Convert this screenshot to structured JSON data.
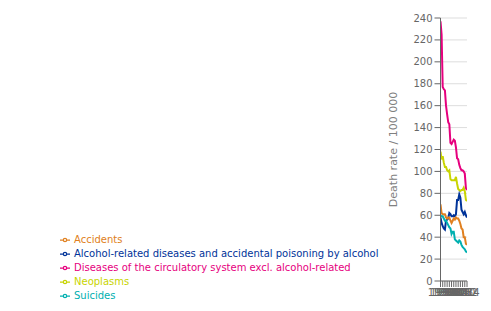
{
  "chart_data": {
    "type": "line",
    "x": [
      1990,
      1991,
      1992,
      1993,
      1994,
      1995,
      1996,
      1997,
      1998,
      1999,
      2000,
      2001,
      2002,
      2003,
      2004,
      2005,
      2006,
      2007,
      2008,
      2009,
      2010,
      2011,
      2012,
      2013,
      2014
    ],
    "series": [
      {
        "name": "Neoplasms",
        "color": "#c8d400",
        "values": [
          118,
          111,
          114,
          108,
          104,
          104,
          101,
          100,
          101,
          93,
          92,
          92,
          92,
          92,
          95,
          89,
          84,
          83,
          82,
          83,
          83,
          85,
          82,
          74,
          73
        ]
      },
      {
        "name": "Diseases of the circulatory system excl. alcohol-related",
        "color": "#e6007e",
        "values": [
          237,
          225,
          177,
          175,
          174,
          160,
          152,
          145,
          143,
          126,
          125,
          127,
          129,
          128,
          122,
          112,
          111,
          106,
          103,
          101,
          101,
          100,
          98,
          85,
          83
        ]
      },
      {
        "name": "Alcohol-related diseases and accidental poisoning by alcohol",
        "color": "#003399",
        "values": [
          58,
          53,
          50,
          48,
          47,
          55,
          56,
          57,
          62,
          61,
          59,
          59,
          60,
          59,
          61,
          74,
          74,
          79,
          76,
          65,
          63,
          61,
          63,
          60,
          58
        ]
      },
      {
        "name": "Accidents",
        "color": "#e08020",
        "values": [
          70,
          62,
          61,
          61,
          61,
          58,
          57,
          58,
          58,
          55,
          53,
          55,
          57,
          56,
          58,
          57,
          57,
          55,
          52,
          48,
          47,
          40,
          40,
          34,
          33
        ]
      },
      {
        "name": "Suicides",
        "color": "#00b0b0",
        "values": [
          60,
          59,
          59,
          57,
          55,
          55,
          53,
          51,
          49,
          48,
          43,
          45,
          45,
          38,
          37,
          36,
          35,
          37,
          36,
          33,
          31,
          30,
          29,
          27,
          26
        ]
      }
    ],
    "ylabel": "Death rate / 100 000",
    "ylim": [
      0,
      240
    ],
    "yticks": [
      0,
      20,
      40,
      60,
      80,
      100,
      120,
      140,
      160,
      180,
      200,
      220,
      240
    ],
    "xlim": [
      1990,
      2014
    ],
    "xticks": [
      1990,
      1992,
      1994,
      1996,
      1998,
      2000,
      2002,
      2004,
      2006,
      2008,
      2010,
      2012,
      2014
    ],
    "grid": true,
    "legend": "bottom"
  }
}
